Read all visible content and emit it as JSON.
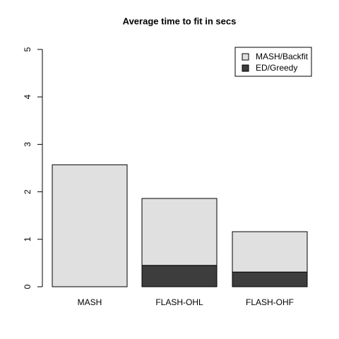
{
  "chart_data": {
    "type": "stacked-bar",
    "title": "Average time to fit in secs",
    "categories": [
      "MASH",
      "FLASH-OHL",
      "FLASH-OHF"
    ],
    "series": [
      {
        "name": "MASH/Backfit",
        "color": "#e0e0e0",
        "values": [
          2.57,
          1.41,
          0.85
        ]
      },
      {
        "name": "ED/Greedy",
        "color": "#3d3d3d",
        "values": [
          0,
          0.45,
          0.31
        ]
      }
    ],
    "ylim": [
      0,
      5
    ],
    "yticks": [
      0,
      1,
      2,
      3,
      4,
      5
    ],
    "legend": "top-right"
  }
}
